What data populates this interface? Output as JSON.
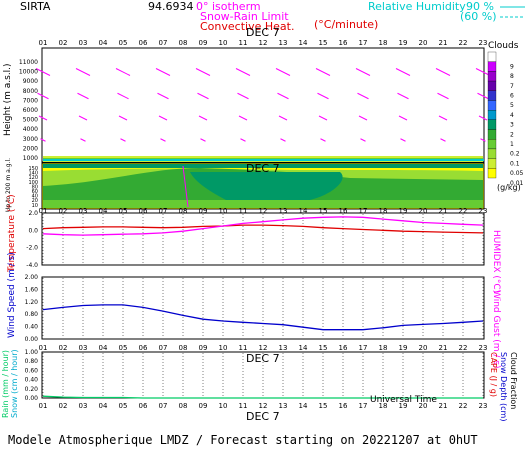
{
  "header": {
    "site": "SIRTA",
    "coords": "94.6934",
    "legend_0c": "0° isotherm",
    "legend_snow": "Snow-Rain Limit",
    "legend_conv": "Convective Heat.",
    "legend_conv_unit": "(°C/minute)",
    "rh_label": "Relative Humidity",
    "rh_90": "90 %",
    "rh_60": "(60 %)"
  },
  "footer": "Modele Atmospherique LMDZ / Forecast starting on 20221207 at 0hUT",
  "universal_time": "Universal Time",
  "date_label": "DEC  7",
  "hours": [
    "01",
    "02",
    "03",
    "04",
    "05",
    "06",
    "07",
    "08",
    "09",
    "10",
    "11",
    "12",
    "13",
    "14",
    "15",
    "16",
    "17",
    "18",
    "19",
    "20",
    "21",
    "22",
    "23"
  ],
  "colors": {
    "temperature": "#e00000",
    "humidex": "#ff00ff",
    "wind": "#0000cc",
    "precip": "#00cc66",
    "wind_arrows": "#ff00ff",
    "frame": "#000000"
  },
  "panels": {
    "clouds": {
      "ylabel": "Height (m a.s.l.)",
      "ylabel_low": "Up to 200 m a.g.l.",
      "yticks_high": [
        "11000",
        "10000",
        "9000",
        "8000",
        "7000",
        "6000",
        "5000",
        "4000",
        "3000",
        "2000",
        "1000"
      ],
      "yticks_low": [
        "150",
        "140",
        "120",
        "100",
        "80",
        "60",
        "40",
        "20",
        "10"
      ],
      "cbar_title": "Clouds",
      "cbar_ticks": [
        "9",
        "8",
        "7",
        "6",
        "5",
        "4",
        "3",
        "2",
        "1",
        "0.2",
        "0.1",
        "0.05",
        "0.01"
      ],
      "cbar_unit": "(g/kg)",
      "cbar_colors": [
        "#ffffff",
        "#cc00ff",
        "#9900cc",
        "#6600aa",
        "#3333cc",
        "#3366ff",
        "#0099cc",
        "#009966",
        "#33aa33",
        "#66cc33",
        "#99dd33",
        "#ccee33",
        "#ffff00"
      ]
    },
    "temp": {
      "ylabel": "Temperature (°C)",
      "ylabel_right": "HUMIDEX (°C)",
      "yticks": [
        "2.0",
        "0.0",
        "-2.0",
        "-4.0"
      ]
    },
    "wind": {
      "ylabel": "Wind Speed (m / s)",
      "ylabel_right": "Wind Gust (m / s)",
      "yticks": [
        "2.00",
        "1.60",
        "1.20",
        "0.80",
        "0.40",
        "0.00"
      ]
    },
    "precip": {
      "ylabel": "Rain (mm / hour)",
      "ylabel2": "Snow (cm / hour)",
      "ylabel_right": "CAPE (J / g)",
      "ylabel_right2": "Snow Depth (cm)",
      "ylabel_right3": "Cloud Fraction",
      "yticks": [
        "1.00",
        "0.80",
        "0.60",
        "0.40",
        "0.20",
        "0.00"
      ]
    }
  },
  "chart_data": [
    {
      "type": "line",
      "title": "Temperature / Humidex",
      "x": [
        1,
        2,
        3,
        4,
        5,
        6,
        7,
        8,
        9,
        10,
        11,
        12,
        13,
        14,
        15,
        16,
        17,
        18,
        19,
        20,
        21,
        22,
        23
      ],
      "ylim": [
        -4,
        2
      ],
      "series": [
        {
          "name": "Temperature",
          "values": [
            0.2,
            0.3,
            0.35,
            0.4,
            0.4,
            0.35,
            0.3,
            0.35,
            0.45,
            0.5,
            0.6,
            0.6,
            0.55,
            0.45,
            0.3,
            0.2,
            0.1,
            0.0,
            -0.1,
            -0.15,
            -0.2,
            -0.25,
            -0.3
          ]
        },
        {
          "name": "HUMIDEX",
          "values": [
            -0.4,
            -0.5,
            -0.55,
            -0.5,
            -0.45,
            -0.4,
            -0.3,
            -0.1,
            0.2,
            0.5,
            0.8,
            1.0,
            1.2,
            1.4,
            1.5,
            1.55,
            1.5,
            1.3,
            1.1,
            0.9,
            0.8,
            0.7,
            0.6
          ]
        }
      ]
    },
    {
      "type": "line",
      "title": "Wind Speed",
      "x": [
        1,
        2,
        3,
        4,
        5,
        6,
        7,
        8,
        9,
        10,
        11,
        12,
        13,
        14,
        15,
        16,
        17,
        18,
        19,
        20,
        21,
        22,
        23
      ],
      "ylim": [
        0,
        2
      ],
      "series": [
        {
          "name": "Wind Speed",
          "values": [
            0.95,
            1.02,
            1.08,
            1.1,
            1.1,
            1.02,
            0.9,
            0.76,
            0.64,
            0.58,
            0.54,
            0.5,
            0.46,
            0.38,
            0.3,
            0.3,
            0.3,
            0.36,
            0.44,
            0.47,
            0.5,
            0.54,
            0.58
          ]
        }
      ]
    },
    {
      "type": "line",
      "title": "Precipitation",
      "x": [
        1,
        2,
        3,
        4,
        5,
        6,
        7,
        8,
        9,
        10,
        11,
        12,
        13,
        14,
        15,
        16,
        17,
        18,
        19,
        20,
        21,
        22,
        23
      ],
      "ylim": [
        0,
        1
      ],
      "series": [
        {
          "name": "Rain",
          "values": [
            0.04,
            0.02,
            0.01,
            0.01,
            0.01,
            0.0,
            0.0,
            0.0,
            0.0,
            0.0,
            0.0,
            0.0,
            0.0,
            0.0,
            0.0,
            0.0,
            0.0,
            0.0,
            0.0,
            0.0,
            0.0,
            0.0,
            0.0
          ]
        }
      ]
    }
  ]
}
